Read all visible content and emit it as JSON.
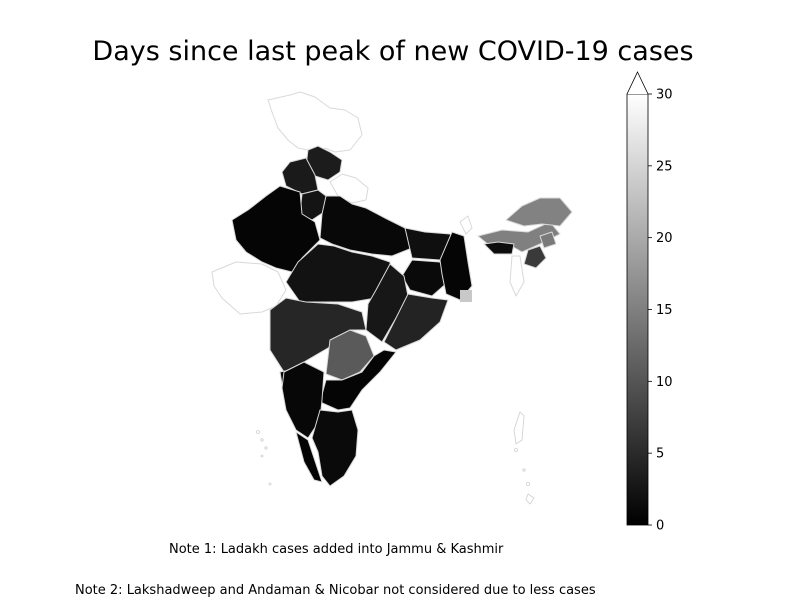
{
  "title": "Days since last peak of new COVID-19 cases",
  "notes": {
    "note1": "Note 1: Ladakh cases added into Jammu & Kashmir",
    "note2": "Note 2: Lakshadweep and Andaman & Nicobar not considered due to less cases"
  },
  "colorbar": {
    "min": 0,
    "max": 30,
    "extend": "max",
    "colormap": "grayscale (black to white)",
    "ticks": [
      "0",
      "5",
      "10",
      "15",
      "20",
      "25",
      "30"
    ]
  },
  "colors": {
    "low": "#000000",
    "high": "#ffffff",
    "border": "#d9d9d9"
  }
}
